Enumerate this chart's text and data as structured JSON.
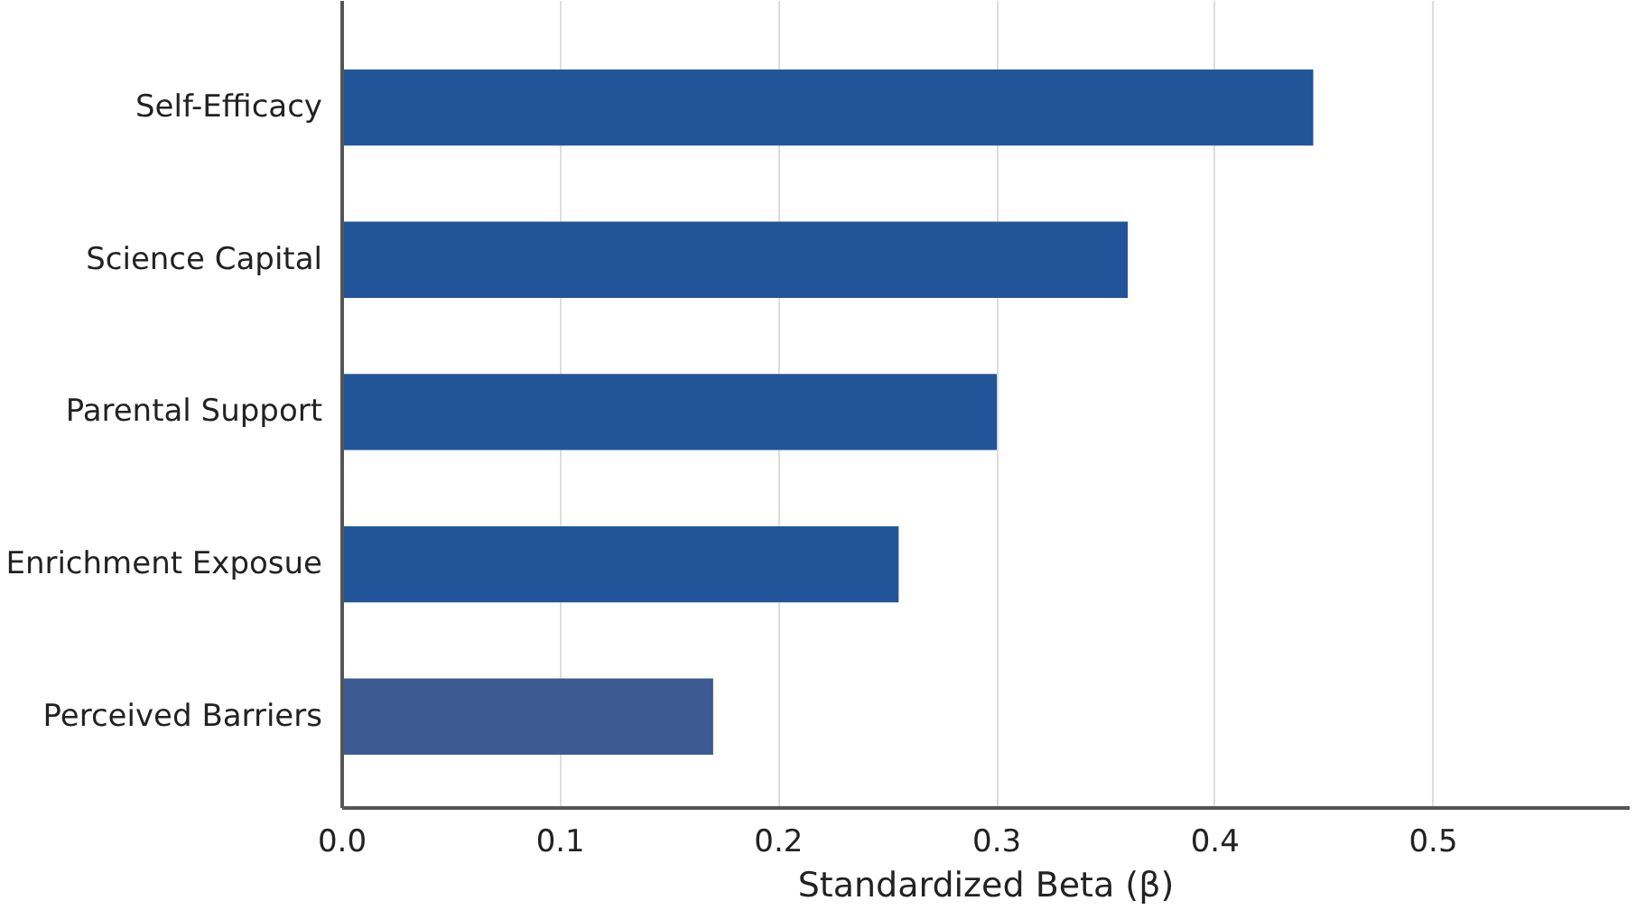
{
  "chart_data": {
    "type": "bar",
    "orientation": "horizontal",
    "xlabel": "Standardized Beta (β)",
    "categories": [
      "Self-Efficacy",
      "Science Capital",
      "Parental Support",
      "Enrichment Exposue",
      "Perceived Barriers"
    ],
    "values": [
      0.445,
      0.36,
      0.3,
      0.255,
      0.17
    ],
    "colors": [
      "#22549a",
      "#22549a",
      "#22549a",
      "#22549a",
      "#3d5a92"
    ],
    "xlim": [
      0,
      0.59
    ],
    "xticks": [
      "0.0",
      0.1,
      0.2,
      0.3,
      0.4,
      0.5
    ],
    "grid": "x"
  }
}
